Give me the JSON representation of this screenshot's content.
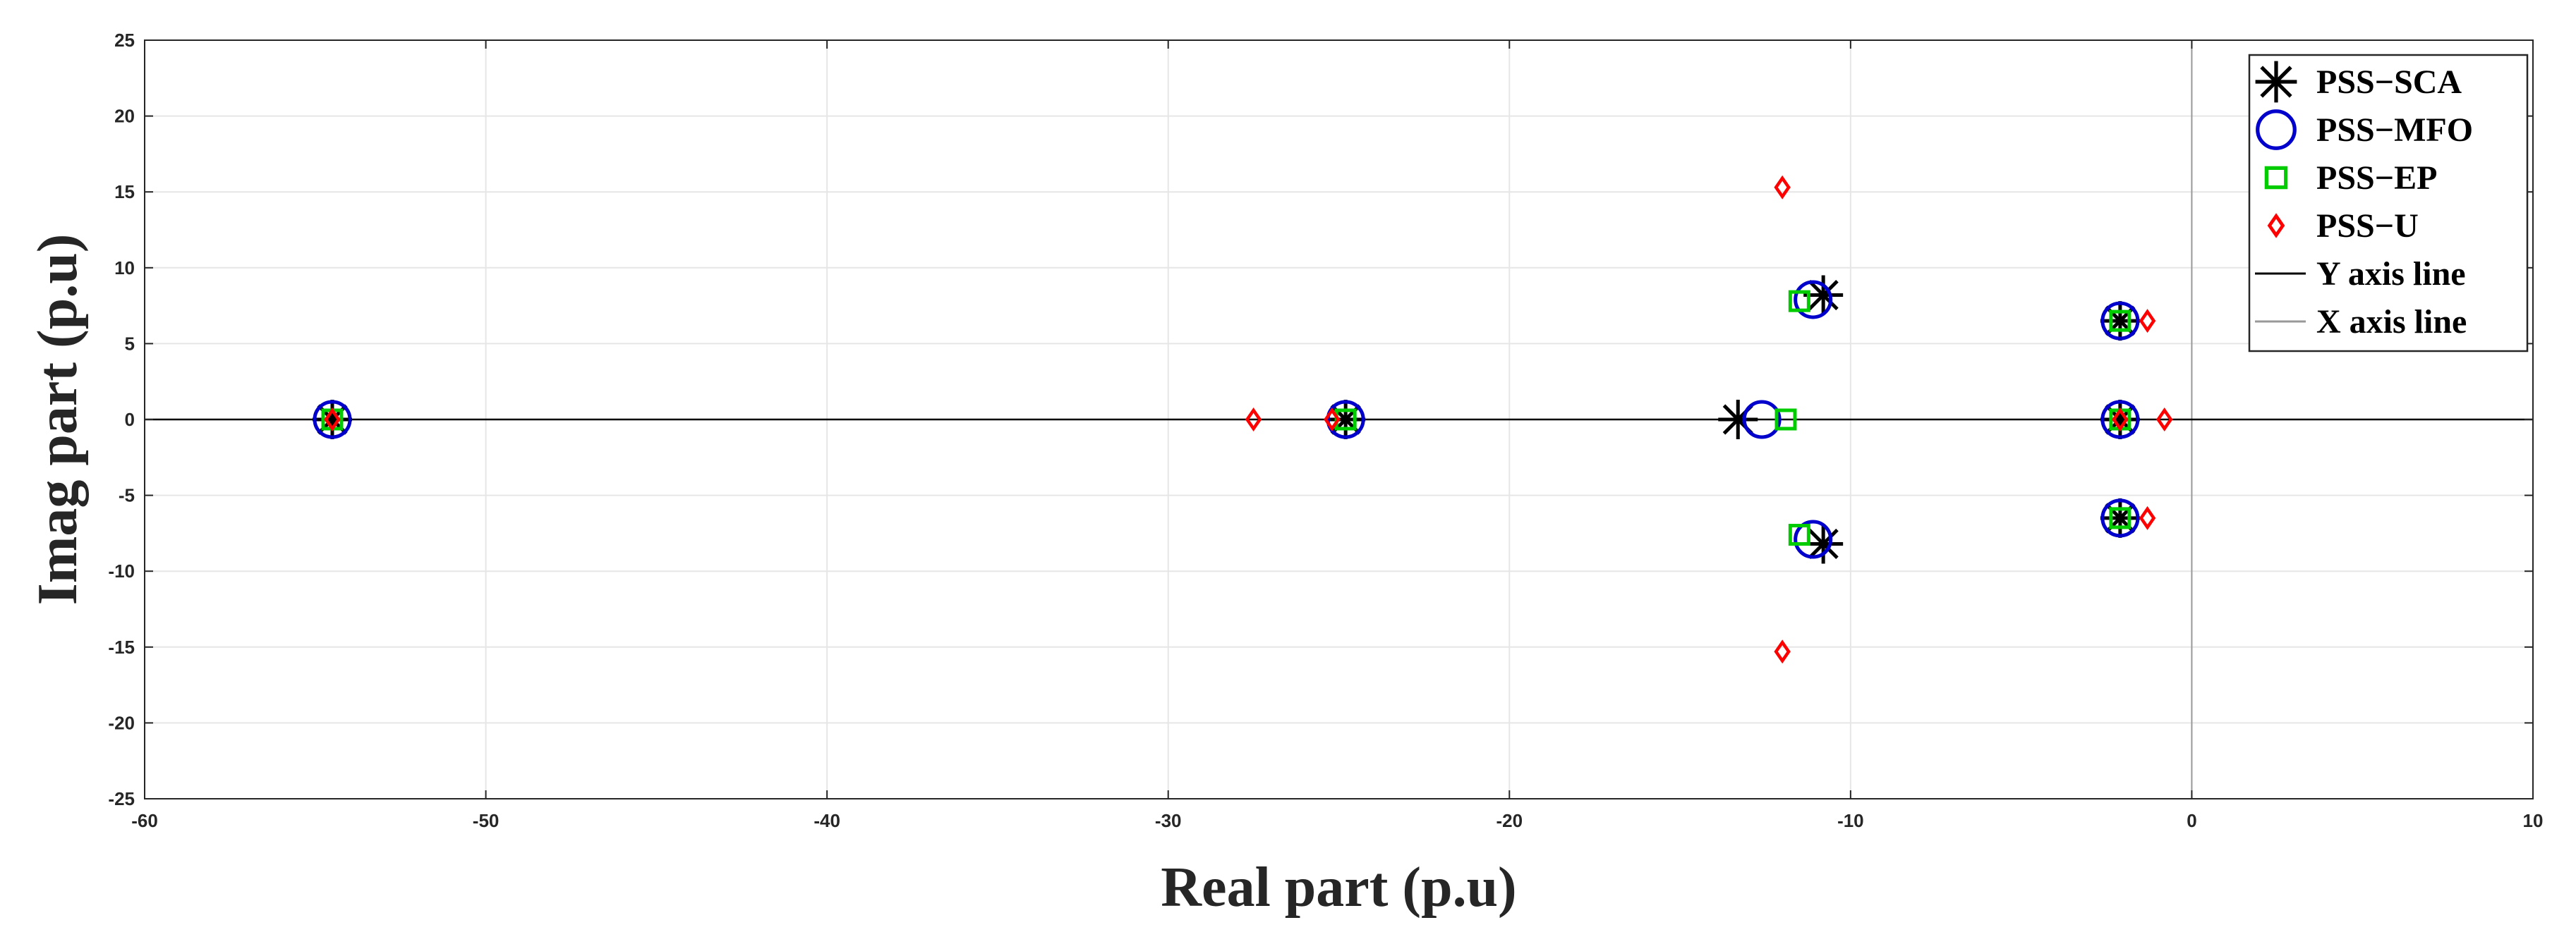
{
  "chart_data": {
    "type": "scatter",
    "xlabel": "Real part (p.u)",
    "ylabel": "Imag part (p.u)",
    "xlim": [
      -60,
      10
    ],
    "ylim": [
      -25,
      25
    ],
    "xticks": [
      -60,
      -50,
      -40,
      -30,
      -20,
      -10,
      0,
      10
    ],
    "yticks": [
      -25,
      -20,
      -15,
      -10,
      -5,
      0,
      5,
      10,
      15,
      20,
      25
    ],
    "grid": true,
    "legend_position": "top-right",
    "series": [
      {
        "name": "PSS−SCA",
        "marker": "asterisk",
        "color": "#000000",
        "points": [
          [
            -54.5,
            0
          ],
          [
            -24.8,
            0
          ],
          [
            -13.3,
            0
          ],
          [
            -10.8,
            8.2
          ],
          [
            -10.8,
            -8.2
          ],
          [
            -2.1,
            6.5
          ],
          [
            -2.1,
            0
          ],
          [
            -2.1,
            -6.5
          ]
        ]
      },
      {
        "name": "PSS−MFO",
        "marker": "circle",
        "color": "#0000CC",
        "points": [
          [
            -54.5,
            0
          ],
          [
            -24.8,
            0
          ],
          [
            -12.6,
            0
          ],
          [
            -11.1,
            7.9
          ],
          [
            -11.1,
            -7.9
          ],
          [
            -2.1,
            6.5
          ],
          [
            -2.1,
            0
          ],
          [
            -2.1,
            -6.5
          ]
        ]
      },
      {
        "name": "PSS−EP",
        "marker": "square",
        "color": "#00CC00",
        "points": [
          [
            -54.5,
            0
          ],
          [
            -24.8,
            0
          ],
          [
            -11.9,
            0
          ],
          [
            -11.5,
            7.8
          ],
          [
            -11.5,
            -7.6
          ],
          [
            -2.1,
            6.5
          ],
          [
            -2.1,
            0
          ],
          [
            -2.1,
            -6.5
          ]
        ]
      },
      {
        "name": "PSS−U",
        "marker": "diamond",
        "color": "#FF0000",
        "points": [
          [
            -54.5,
            0
          ],
          [
            -27.5,
            0
          ],
          [
            -25.2,
            0
          ],
          [
            -12.0,
            15.3
          ],
          [
            -12.0,
            -15.3
          ],
          [
            -1.3,
            6.5
          ],
          [
            -2.1,
            0
          ],
          [
            -0.8,
            0
          ],
          [
            -1.3,
            -6.5
          ]
        ]
      },
      {
        "name": "Y axis line",
        "marker": "line",
        "color": "#000000"
      },
      {
        "name": "X axis line",
        "marker": "line",
        "color": "#999999"
      }
    ]
  }
}
